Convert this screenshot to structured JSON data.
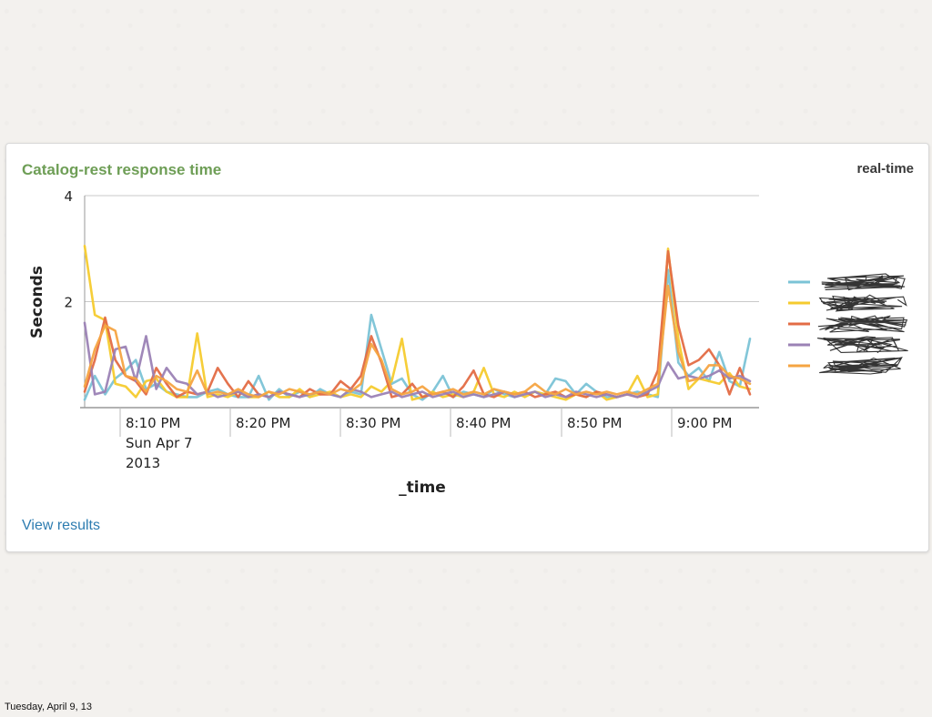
{
  "slide": {
    "footer_date": "Tuesday, April 9, 13"
  },
  "panel": {
    "title": "Catalog-rest response time",
    "badge": "real-time",
    "view_results_label": "View results"
  },
  "colors": {
    "title_green": "#6e9e56",
    "link_blue": "#2d7cb0",
    "series": [
      "#7bc3d6",
      "#f5cb2e",
      "#e36c45",
      "#9b82b5",
      "#f5a442"
    ]
  },
  "chart_data": {
    "type": "line",
    "xlabel": "_time",
    "ylabel": "Seconds",
    "ylim": [
      0,
      4
    ],
    "y_ticks": [
      "2",
      "4"
    ],
    "x_tick_labels": [
      [
        "8:10 PM",
        "Sun Apr 7",
        "2013"
      ],
      [
        "8:20 PM"
      ],
      [
        "8:30 PM"
      ],
      [
        "8:40 PM"
      ],
      [
        "8:50 PM"
      ],
      [
        "9:00 PM"
      ]
    ],
    "grid": "horizontal",
    "legend_position": "right",
    "x_start": "8:07 PM",
    "x_end": "9:07 PM",
    "series": [
      {
        "values": [
          0.15,
          0.6,
          0.25,
          0.55,
          0.7,
          0.9,
          0.35,
          0.45,
          0.3,
          0.25,
          0.2,
          0.2,
          0.3,
          0.35,
          0.25,
          0.2,
          0.2,
          0.6,
          0.15,
          0.35,
          0.2,
          0.3,
          0.2,
          0.35,
          0.25,
          0.2,
          0.3,
          0.25,
          1.75,
          1.1,
          0.45,
          0.55,
          0.25,
          0.15,
          0.3,
          0.6,
          0.2,
          0.3,
          0.25,
          0.2,
          0.35,
          0.25,
          0.2,
          0.25,
          0.3,
          0.25,
          0.55,
          0.5,
          0.25,
          0.45,
          0.3,
          0.2,
          0.2,
          0.25,
          0.3,
          0.25,
          0.2,
          2.6,
          0.85,
          0.6,
          0.75,
          0.5,
          1.05,
          0.5,
          0.4,
          1.3
        ]
      },
      {
        "values": [
          3.05,
          1.75,
          1.65,
          0.45,
          0.4,
          0.2,
          0.5,
          0.55,
          0.3,
          0.2,
          0.2,
          1.4,
          0.2,
          0.25,
          0.2,
          0.3,
          0.2,
          0.2,
          0.3,
          0.2,
          0.2,
          0.35,
          0.2,
          0.25,
          0.3,
          0.2,
          0.25,
          0.2,
          0.4,
          0.3,
          0.5,
          1.3,
          0.15,
          0.2,
          0.3,
          0.2,
          0.25,
          0.2,
          0.3,
          0.75,
          0.25,
          0.2,
          0.3,
          0.2,
          0.3,
          0.25,
          0.2,
          0.15,
          0.25,
          0.2,
          0.3,
          0.15,
          0.2,
          0.25,
          0.6,
          0.2,
          0.25,
          3.0,
          1.3,
          0.35,
          0.55,
          0.5,
          0.45,
          0.65,
          0.4,
          0.35
        ]
      },
      {
        "values": [
          0.3,
          0.9,
          1.7,
          0.9,
          0.6,
          0.5,
          0.25,
          0.75,
          0.45,
          0.2,
          0.3,
          0.25,
          0.3,
          0.75,
          0.45,
          0.2,
          0.5,
          0.25,
          0.2,
          0.3,
          0.25,
          0.2,
          0.35,
          0.25,
          0.25,
          0.5,
          0.35,
          0.6,
          1.35,
          0.85,
          0.2,
          0.25,
          0.45,
          0.2,
          0.25,
          0.3,
          0.2,
          0.4,
          0.7,
          0.25,
          0.2,
          0.3,
          0.25,
          0.3,
          0.2,
          0.25,
          0.3,
          0.2,
          0.25,
          0.2,
          0.3,
          0.25,
          0.2,
          0.25,
          0.2,
          0.25,
          0.7,
          2.95,
          1.55,
          0.8,
          0.9,
          1.1,
          0.8,
          0.25,
          0.75,
          0.25
        ]
      },
      {
        "values": [
          1.6,
          0.25,
          0.3,
          1.1,
          1.15,
          0.5,
          1.35,
          0.35,
          0.75,
          0.5,
          0.45,
          0.25,
          0.3,
          0.2,
          0.25,
          0.3,
          0.2,
          0.25,
          0.2,
          0.3,
          0.25,
          0.2,
          0.25,
          0.3,
          0.25,
          0.2,
          0.35,
          0.3,
          0.2,
          0.25,
          0.3,
          0.2,
          0.25,
          0.3,
          0.2,
          0.25,
          0.3,
          0.2,
          0.25,
          0.2,
          0.25,
          0.3,
          0.2,
          0.25,
          0.3,
          0.2,
          0.25,
          0.2,
          0.3,
          0.25,
          0.2,
          0.25,
          0.2,
          0.25,
          0.2,
          0.3,
          0.4,
          0.85,
          0.55,
          0.6,
          0.55,
          0.6,
          0.7,
          0.55,
          0.6,
          0.5
        ]
      },
      {
        "values": [
          0.4,
          1.1,
          1.55,
          1.45,
          0.6,
          0.55,
          0.3,
          0.6,
          0.5,
          0.35,
          0.3,
          0.7,
          0.25,
          0.3,
          0.25,
          0.35,
          0.25,
          0.2,
          0.3,
          0.25,
          0.35,
          0.3,
          0.25,
          0.3,
          0.25,
          0.35,
          0.3,
          0.45,
          1.2,
          0.9,
          0.35,
          0.25,
          0.3,
          0.4,
          0.25,
          0.3,
          0.35,
          0.25,
          0.3,
          0.25,
          0.35,
          0.3,
          0.25,
          0.3,
          0.45,
          0.3,
          0.25,
          0.35,
          0.25,
          0.3,
          0.25,
          0.3,
          0.25,
          0.3,
          0.25,
          0.35,
          0.45,
          2.3,
          1.05,
          0.5,
          0.55,
          0.8,
          0.8,
          0.6,
          0.55,
          0.45
        ]
      }
    ]
  }
}
